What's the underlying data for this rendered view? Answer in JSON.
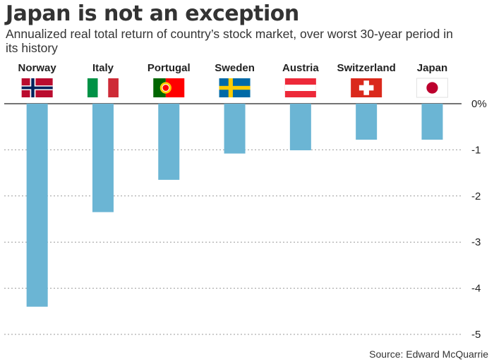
{
  "title": "Japan is not an exception",
  "subtitle": "Annualized real total return of country’s stock market, over worst 30-year period in its history",
  "source": "Source: Edward McQuarrie",
  "chart_data": {
    "type": "bar",
    "title": "Japan is not an exception",
    "subtitle": "Annualized real total return of country’s stock market, over worst 30-year period in its history",
    "categories": [
      "Norway",
      "Italy",
      "Portugal",
      "Sweden",
      "Austria",
      "Switzerland",
      "Japan"
    ],
    "values": [
      -4.4,
      -2.35,
      -1.65,
      -1.08,
      -1.01,
      -0.78,
      -0.78
    ],
    "flags": [
      "norway-flag",
      "italy-flag",
      "portugal-flag",
      "sweden-flag",
      "austria-flag",
      "switzerland-flag",
      "japan-flag"
    ],
    "yticks": [
      0,
      -1,
      -2,
      -3,
      -4,
      -5
    ],
    "ytick_labels": [
      "0%",
      "-1",
      "-2",
      "-3",
      "-4",
      "-5"
    ],
    "ylim": [
      -5,
      0
    ],
    "grid": true,
    "bar_color": "#6bb5d4",
    "xlabel": "",
    "ylabel": ""
  }
}
